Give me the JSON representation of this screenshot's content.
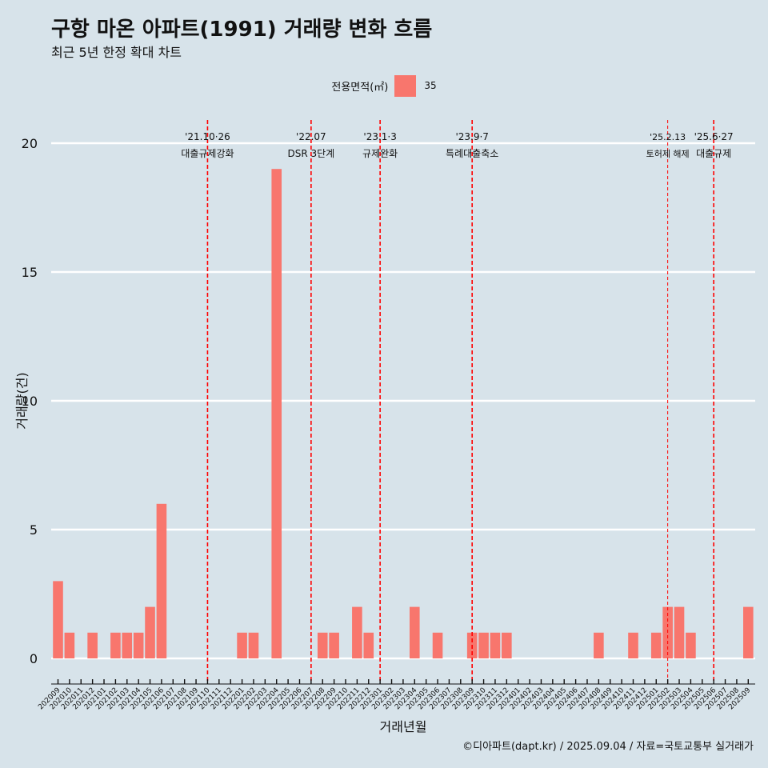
{
  "header": {
    "title": "구항 마온 아파트(1991) 거래량 변화 흐름",
    "subtitle": "최근 5년 한정 확대 차트"
  },
  "legend": {
    "title": "전용면적(㎡)",
    "series_name": "35"
  },
  "footer": {
    "source": "©디아파트(dapt.kr) / 2025.09.04 / 자료=국토교통부 실거래가"
  },
  "colors": {
    "background": "#d7e3ea",
    "bar": "#f8766d",
    "gridline": "#ffffff",
    "event_line": "#ff0000"
  },
  "chart_data": {
    "type": "bar",
    "xlabel": "거래년월",
    "ylabel": "거래량(건)",
    "ylim": [
      0,
      20
    ],
    "yticks": [
      0,
      5,
      10,
      15,
      20
    ],
    "grid": "horizontal",
    "legend_position": "top",
    "categories": [
      "202009",
      "202010",
      "202011",
      "202012",
      "202101",
      "202102",
      "202103",
      "202104",
      "202105",
      "202106",
      "202107",
      "202108",
      "202109",
      "202110",
      "202111",
      "202112",
      "202201",
      "202202",
      "202203",
      "202204",
      "202205",
      "202206",
      "202207",
      "202208",
      "202209",
      "202210",
      "202211",
      "202212",
      "202301",
      "202302",
      "202303",
      "202304",
      "202305",
      "202306",
      "202307",
      "202308",
      "202309",
      "202310",
      "202311",
      "202312",
      "202401",
      "202402",
      "202403",
      "202404",
      "202405",
      "202406",
      "202407",
      "202408",
      "202409",
      "202410",
      "202411",
      "202412",
      "202501",
      "202502",
      "202503",
      "202504",
      "202505",
      "202506",
      "202507",
      "202508",
      "202509"
    ],
    "series": [
      {
        "name": "35",
        "values": [
          3,
          1,
          0,
          1,
          0,
          1,
          1,
          1,
          2,
          6,
          0,
          0,
          0,
          0,
          0,
          0,
          1,
          1,
          0,
          19,
          0,
          0,
          0,
          1,
          1,
          0,
          2,
          1,
          0,
          0,
          0,
          2,
          0,
          1,
          0,
          0,
          1,
          1,
          1,
          1,
          0,
          0,
          0,
          0,
          0,
          0,
          0,
          1,
          0,
          0,
          1,
          0,
          1,
          2,
          2,
          1,
          0,
          0,
          0,
          0,
          2
        ]
      }
    ],
    "events": [
      {
        "x": "202110",
        "date_label": "'21.10·26",
        "label": "대출규제강화",
        "style": "dashed"
      },
      {
        "x": "202207",
        "date_label": "'22.07",
        "label": "DSR 3단계",
        "style": "dashed"
      },
      {
        "x": "202301",
        "date_label": "'23.1·3",
        "label": "규제완화",
        "style": "dashed"
      },
      {
        "x": "202309",
        "date_label": "'23.9·7",
        "label": "특례대출축소",
        "style": "dashed"
      },
      {
        "x": "202502",
        "date_label": "'25.2.13",
        "label": "토허제 해제",
        "style": "thin-dashed"
      },
      {
        "x": "202506",
        "date_label": "'25.6·27",
        "label": "대출규제",
        "style": "dashed"
      }
    ]
  }
}
